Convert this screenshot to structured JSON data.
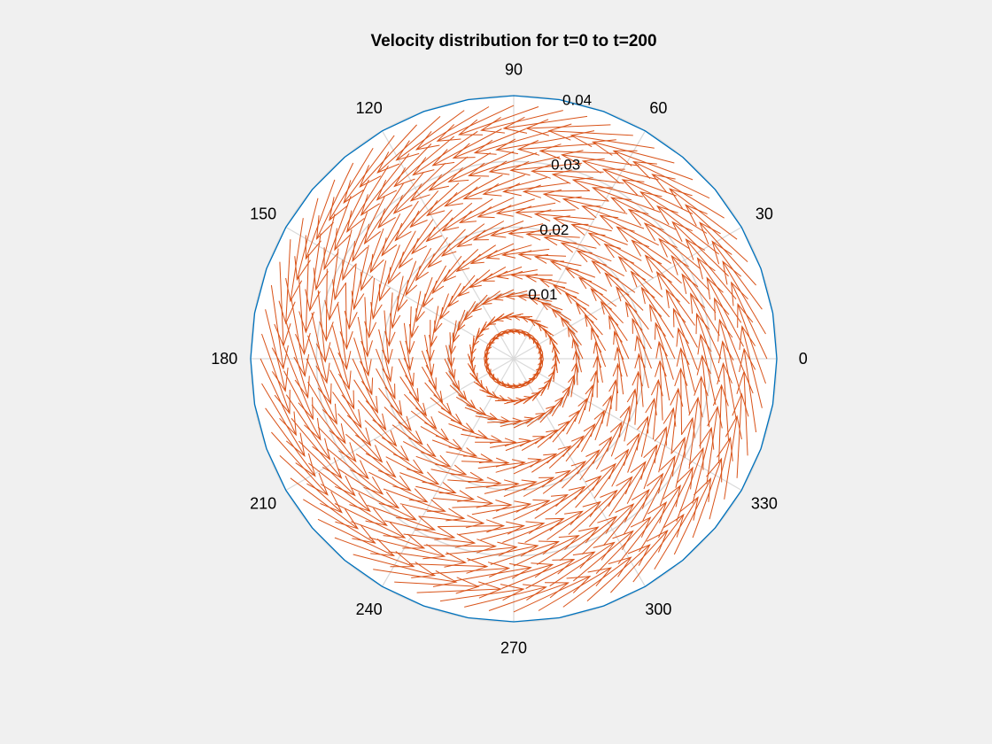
{
  "chart_data": {
    "type": "polar-quiver",
    "title": "Velocity distribution for t=0 to t=200",
    "angle_ticks": [
      "0",
      "30",
      "60",
      "90",
      "120",
      "150",
      "180",
      "210",
      "240",
      "270",
      "300",
      "330"
    ],
    "angle_tick_values": [
      0,
      30,
      60,
      90,
      120,
      150,
      180,
      210,
      240,
      270,
      300,
      330
    ],
    "radial_ticks": [
      "0.01",
      "0.02",
      "0.03",
      "0.04"
    ],
    "radial_tick_values": [
      0.01,
      0.02,
      0.03,
      0.04
    ],
    "rlim": [
      0,
      0.04
    ],
    "grid": true,
    "field": {
      "description_of_flow": "counter-clockwise swirl",
      "rings_r": [
        0.0045,
        0.007,
        0.0105,
        0.014,
        0.0175,
        0.021,
        0.0245,
        0.028,
        0.0315,
        0.035,
        0.0385
      ],
      "ring_arrow_counts": [
        28,
        30,
        32,
        36,
        40,
        44,
        48,
        52,
        56,
        60,
        64
      ],
      "tangential_dir": "counter-clockwise",
      "inward_bias_deg": 25
    },
    "boundary_polygon_sides": 36,
    "boundary_r": 0.04,
    "colors": {
      "background": "#f0f0f0",
      "plot_area": "#ffffff",
      "grid": "#d9d9d9",
      "boundary": "#0072bd",
      "arrows": "#d95319"
    }
  }
}
